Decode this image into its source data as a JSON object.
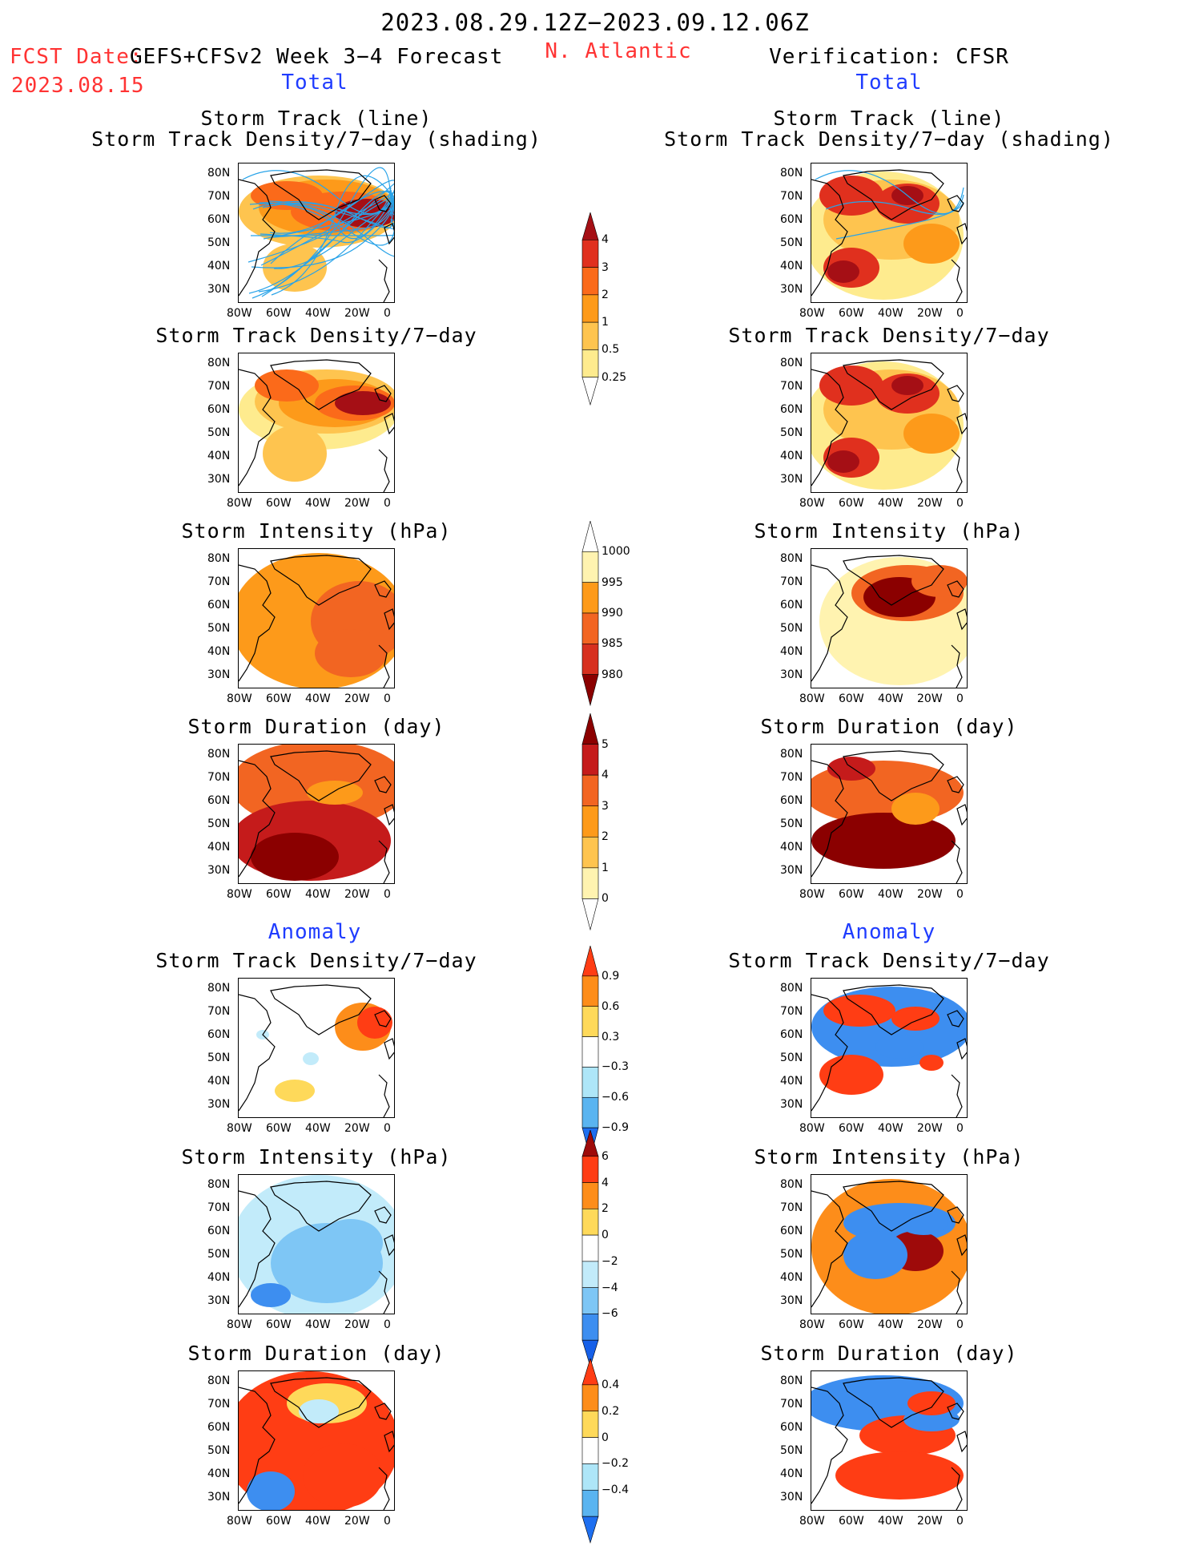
{
  "header": {
    "period": "2023.08.29.12Z−2023.09.12.06Z",
    "fcst_label": "FCST Date:",
    "fcst_model": "GEFS+CFSv2 Week 3−4 Forecast",
    "fcst_date": "2023.08.15",
    "region": "N. Atlantic",
    "verification": "Verification: CFSR",
    "total_left": "Total",
    "total_right": "Total",
    "anomaly_left": "Anomaly",
    "anomaly_right": "Anomaly"
  },
  "colors": {
    "red_text": "#ff3333",
    "blue_text": "#1f3cff"
  },
  "axes": {
    "x_ticks": [
      "80W",
      "60W",
      "40W",
      "20W",
      "0"
    ],
    "y_ticks": [
      "80N",
      "70N",
      "60N",
      "50N",
      "40N",
      "30N"
    ]
  },
  "rows": [
    {
      "left_title": "Storm Track (line)",
      "left_title2": "Storm Track Density/7−day (shading)",
      "right_title": "Storm Track (line)",
      "right_title2": "Storm Track Density/7−day (shading)"
    },
    {
      "left_title": "Storm Track Density/7−day",
      "right_title": "Storm Track Density/7−day"
    },
    {
      "left_title": "Storm Intensity (hPa)",
      "right_title": "Storm Intensity (hPa)"
    },
    {
      "left_title": "Storm Duration (day)",
      "right_title": "Storm Duration (day)"
    },
    {
      "left_title": "Storm Track Density/7−day",
      "right_title": "Storm Track Density/7−day"
    },
    {
      "left_title": "Storm Intensity (hPa)",
      "right_title": "Storm Intensity (hPa)"
    },
    {
      "left_title": "Storm Duration (day)",
      "right_title": "Storm Duration (day)"
    }
  ],
  "colorbars": [
    {
      "labels": [
        "4",
        "3",
        "2",
        "1",
        "0.5",
        "0.25"
      ],
      "colors": [
        "#a50f15",
        "#e0301e",
        "#fb6a1a",
        "#fd9a1a",
        "#fec44f",
        "#feeb8e",
        "#ffffff"
      ]
    },
    {
      "labels": [
        "1000",
        "995",
        "990",
        "985",
        "980"
      ],
      "colors": [
        "#ffffff",
        "#fff3b0",
        "#fd9a1a",
        "#f26522",
        "#d7301f",
        "#8b0000"
      ]
    },
    {
      "labels": [
        "5",
        "4",
        "3",
        "2",
        "1",
        "0"
      ],
      "colors": [
        "#8b0000",
        "#c51b1b",
        "#f26522",
        "#fd9a1a",
        "#fec44f",
        "#fff3b0",
        "#ffffff"
      ]
    },
    {
      "labels": [
        "0.9",
        "0.6",
        "0.3",
        "−0.3",
        "−0.6",
        "−0.9"
      ],
      "colors": [
        "#ff3d14",
        "#fd8d1a",
        "#fed95a",
        "#ffffff",
        "#aee6f8",
        "#5ab4f0",
        "#1e6ff0"
      ]
    },
    {
      "labels": [
        "6",
        "4",
        "2",
        "0",
        "−2",
        "−4",
        "−6"
      ],
      "colors": [
        "#9e0a0a",
        "#ff3d14",
        "#fd8d1a",
        "#fed95a",
        "#ffffff",
        "#c2ebfa",
        "#7ec6f5",
        "#3d8ef0",
        "#1660e8"
      ]
    },
    {
      "labels": [
        "0.4",
        "0.2",
        "0",
        "−0.2",
        "−0.4"
      ],
      "colors": [
        "#ff3d14",
        "#fd8d1a",
        "#fed95a",
        "#ffffff",
        "#aee6f8",
        "#5ab4f0",
        "#1e6ff0"
      ]
    }
  ],
  "chart_data": [
    {
      "type": "heatmap",
      "title": "Storm Track (line) / Storm Track Density/7−day (shading)",
      "column": "GEFS+CFSv2 Week 3−4 Forecast Total",
      "levels": [
        0.25,
        0.5,
        1,
        2,
        3,
        4
      ],
      "xlim": [
        "80W",
        "0"
      ],
      "ylim": [
        "25N",
        "85N"
      ]
    },
    {
      "type": "heatmap",
      "title": "Storm Track Density/7−day",
      "column": "GEFS+CFSv2 Week 3−4 Forecast Total",
      "levels": [
        0.25,
        0.5,
        1,
        2,
        3,
        4
      ]
    },
    {
      "type": "heatmap",
      "title": "Storm Intensity (hPa)",
      "column": "GEFS+CFSv2 Week 3−4 Forecast Total",
      "levels": [
        1000,
        995,
        990,
        985,
        980
      ]
    },
    {
      "type": "heatmap",
      "title": "Storm Duration (day)",
      "column": "GEFS+CFSv2 Week 3−4 Forecast Total",
      "levels": [
        0,
        1,
        2,
        3,
        4,
        5
      ]
    },
    {
      "type": "heatmap",
      "title": "Storm Track Density/7−day",
      "column": "GEFS+CFSv2 Week 3−4 Forecast Anomaly",
      "levels": [
        -0.9,
        -0.6,
        -0.3,
        0.3,
        0.6,
        0.9
      ]
    },
    {
      "type": "heatmap",
      "title": "Storm Intensity (hPa)",
      "column": "GEFS+CFSv2 Week 3−4 Forecast Anomaly",
      "levels": [
        -6,
        -4,
        -2,
        0,
        2,
        4,
        6
      ]
    },
    {
      "type": "heatmap",
      "title": "Storm Duration (day)",
      "column": "GEFS+CFSv2 Week 3−4 Forecast Anomaly",
      "levels": [
        -0.4,
        -0.2,
        0,
        0.2,
        0.4
      ]
    },
    {
      "type": "heatmap",
      "title": "Storm Track (line) / Storm Track Density/7−day (shading)",
      "column": "Verification: CFSR Total",
      "levels": [
        0.25,
        0.5,
        1,
        2,
        3,
        4
      ]
    },
    {
      "type": "heatmap",
      "title": "Storm Track Density/7−day",
      "column": "Verification: CFSR Total",
      "levels": [
        0.25,
        0.5,
        1,
        2,
        3,
        4
      ]
    },
    {
      "type": "heatmap",
      "title": "Storm Intensity (hPa)",
      "column": "Verification: CFSR Total",
      "levels": [
        1000,
        995,
        990,
        985,
        980
      ]
    },
    {
      "type": "heatmap",
      "title": "Storm Duration (day)",
      "column": "Verification: CFSR Total",
      "levels": [
        0,
        1,
        2,
        3,
        4,
        5
      ]
    },
    {
      "type": "heatmap",
      "title": "Storm Track Density/7−day",
      "column": "Verification: CFSR Anomaly",
      "levels": [
        -0.9,
        -0.6,
        -0.3,
        0.3,
        0.6,
        0.9
      ]
    },
    {
      "type": "heatmap",
      "title": "Storm Intensity (hPa)",
      "column": "Verification: CFSR Anomaly",
      "levels": [
        -6,
        -4,
        -2,
        0,
        2,
        4,
        6
      ]
    },
    {
      "type": "heatmap",
      "title": "Storm Duration (day)",
      "column": "Verification: CFSR Anomaly",
      "levels": [
        -0.4,
        -0.2,
        0,
        0.2,
        0.4
      ]
    }
  ]
}
